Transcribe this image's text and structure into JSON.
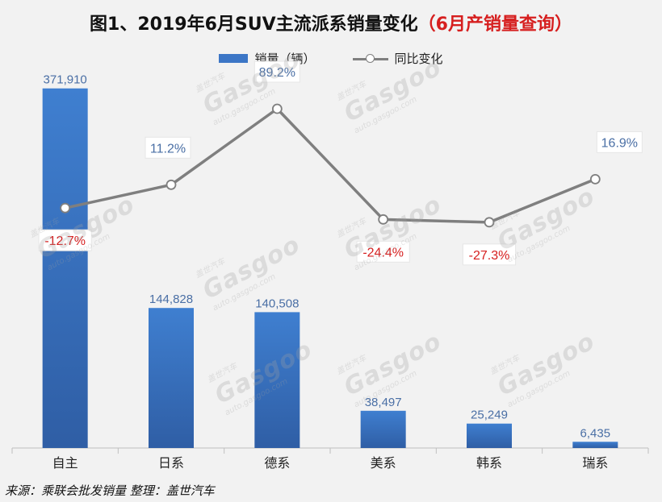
{
  "chart_data": {
    "type": "bar",
    "title_main": "图1、2019年6月SUV主流派系销量变化",
    "title_highlight": "（6月产销量查询）",
    "categories": [
      "自主",
      "日系",
      "德系",
      "美系",
      "韩系",
      "瑞系"
    ],
    "series": [
      {
        "name": "销量（辆）",
        "type": "bar",
        "values": [
          371910,
          144828,
          140508,
          38497,
          25249,
          6435
        ],
        "labels": [
          "371,910",
          "144,828",
          "140,508",
          "38,497",
          "25,249",
          "6,435"
        ]
      },
      {
        "name": "同比变化",
        "type": "line",
        "values": [
          -12.7,
          11.2,
          89.2,
          -24.4,
          -27.3,
          16.9
        ],
        "labels": [
          "-12.7%",
          "11.2%",
          "89.2%",
          "-24.4%",
          "-27.3%",
          "16.9%"
        ]
      }
    ],
    "bar_ylim": [
      0,
      380000
    ],
    "line_ylim": [
      -135,
      95
    ],
    "colors": {
      "bar": "#3c76c6",
      "bar_dark": "#2f5ea5",
      "line": "#7f7f7f",
      "negative_label": "#d61f1f",
      "positive_label": "#4a6fa5",
      "bar_label": "#4a6fa5"
    }
  },
  "source": "来源：乘联会批发销量  整理：盖世汽车",
  "watermark": {
    "brand": "Gasgoo",
    "cn": "盖世汽车",
    "url": "auto.gasgoo.com"
  }
}
